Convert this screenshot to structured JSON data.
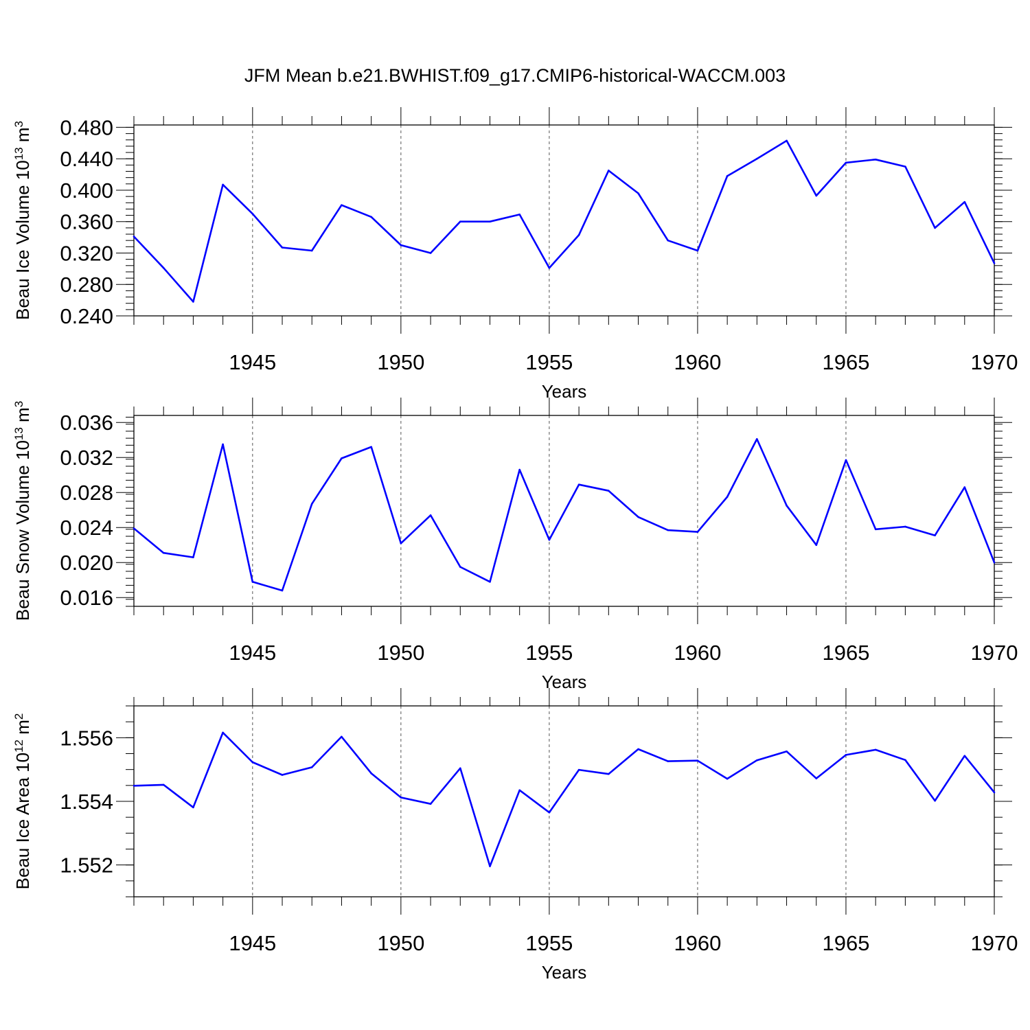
{
  "figure_title": "JFM Mean b.e21.BWHIST.f09_g17.CMIP6-historical-WACCM.003",
  "colors": {
    "line": "#0000ff",
    "axis": "#000000",
    "grid": "#555555"
  },
  "chart_data": [
    {
      "type": "line",
      "ylabel": "Beau Ice Volume 10",
      "ylabel_exp": "13",
      "ylabel_unit": " m",
      "ylabel_unit_exp": "3",
      "xlabel": "Years",
      "xlim": [
        1941,
        1970
      ],
      "ylim": [
        0.24,
        0.483
      ],
      "x_ticks": [
        1945,
        1950,
        1955,
        1960,
        1965,
        1970
      ],
      "y_ticks": [
        0.24,
        0.28,
        0.32,
        0.36,
        0.4,
        0.44,
        0.48
      ],
      "y_tick_labels": [
        "0.240",
        "0.280",
        "0.320",
        "0.360",
        "0.400",
        "0.440",
        "0.480"
      ],
      "y_minor_step": 0.008,
      "grid": "vertical dashed at major x ticks",
      "series": [
        {
          "name": "Beau Ice Volume",
          "x": [
            1941,
            1942,
            1943,
            1944,
            1945,
            1946,
            1947,
            1948,
            1949,
            1950,
            1951,
            1952,
            1953,
            1954,
            1955,
            1956,
            1957,
            1958,
            1959,
            1960,
            1961,
            1962,
            1963,
            1964,
            1965,
            1966,
            1967,
            1968,
            1969,
            1970
          ],
          "values": [
            0.341,
            0.301,
            0.258,
            0.407,
            0.37,
            0.327,
            0.323,
            0.381,
            0.366,
            0.33,
            0.32,
            0.36,
            0.36,
            0.369,
            0.301,
            0.343,
            0.425,
            0.396,
            0.336,
            0.323,
            0.418,
            0.44,
            0.463,
            0.393,
            0.435,
            0.439,
            0.43,
            0.352,
            0.385,
            0.307
          ]
        }
      ]
    },
    {
      "type": "line",
      "ylabel": "Beau Snow Volume 10",
      "ylabel_exp": "13",
      "ylabel_unit": " m",
      "ylabel_unit_exp": "3",
      "xlabel": "Years",
      "xlim": [
        1941,
        1970
      ],
      "ylim": [
        0.015,
        0.0368
      ],
      "x_ticks": [
        1945,
        1950,
        1955,
        1960,
        1965,
        1970
      ],
      "y_ticks": [
        0.016,
        0.02,
        0.024,
        0.028,
        0.032,
        0.036
      ],
      "y_tick_labels": [
        "0.016",
        "0.020",
        "0.024",
        "0.028",
        "0.032",
        "0.036"
      ],
      "y_minor_step": 0.0008,
      "grid": "vertical dashed at major x ticks",
      "series": [
        {
          "name": "Beau Snow Volume",
          "x": [
            1941,
            1942,
            1943,
            1944,
            1945,
            1946,
            1947,
            1948,
            1949,
            1950,
            1951,
            1952,
            1953,
            1954,
            1955,
            1956,
            1957,
            1958,
            1959,
            1960,
            1961,
            1962,
            1963,
            1964,
            1965,
            1966,
            1967,
            1968,
            1969,
            1970
          ],
          "values": [
            0.0239,
            0.0211,
            0.0206,
            0.0335,
            0.0178,
            0.0168,
            0.0267,
            0.0319,
            0.0332,
            0.0222,
            0.0254,
            0.0195,
            0.0178,
            0.0306,
            0.0226,
            0.0289,
            0.0282,
            0.0252,
            0.0237,
            0.0235,
            0.0275,
            0.0341,
            0.0265,
            0.022,
            0.0317,
            0.0238,
            0.0241,
            0.0231,
            0.0286,
            0.02
          ]
        }
      ]
    },
    {
      "type": "line",
      "ylabel": "Beau Ice Area 10",
      "ylabel_exp": "12",
      "ylabel_unit": " m",
      "ylabel_unit_exp": "2",
      "xlabel": "Years",
      "xlim": [
        1941,
        1970
      ],
      "ylim": [
        1.551,
        1.557
      ],
      "x_ticks": [
        1945,
        1950,
        1955,
        1960,
        1965,
        1970
      ],
      "y_ticks": [
        1.552,
        1.554,
        1.556
      ],
      "y_tick_labels": [
        "1.552",
        "1.554",
        "1.556"
      ],
      "y_minor_step": 0.0005,
      "grid": "vertical dashed at major x ticks",
      "series": [
        {
          "name": "Beau Ice Area",
          "x": [
            1941,
            1942,
            1943,
            1944,
            1945,
            1946,
            1947,
            1948,
            1949,
            1950,
            1951,
            1952,
            1953,
            1954,
            1955,
            1956,
            1957,
            1958,
            1959,
            1960,
            1961,
            1962,
            1963,
            1964,
            1965,
            1966,
            1967,
            1968,
            1969,
            1970
          ],
          "values": [
            1.55449,
            1.55452,
            1.55381,
            1.55616,
            1.55523,
            1.55483,
            1.55507,
            1.55603,
            1.55488,
            1.55412,
            1.55392,
            1.55504,
            1.55196,
            1.55435,
            1.55365,
            1.55499,
            1.55486,
            1.55564,
            1.55526,
            1.55528,
            1.55471,
            1.55529,
            1.55557,
            1.55472,
            1.55546,
            1.55562,
            1.5553,
            1.55402,
            1.55543,
            1.55428
          ]
        }
      ]
    }
  ]
}
